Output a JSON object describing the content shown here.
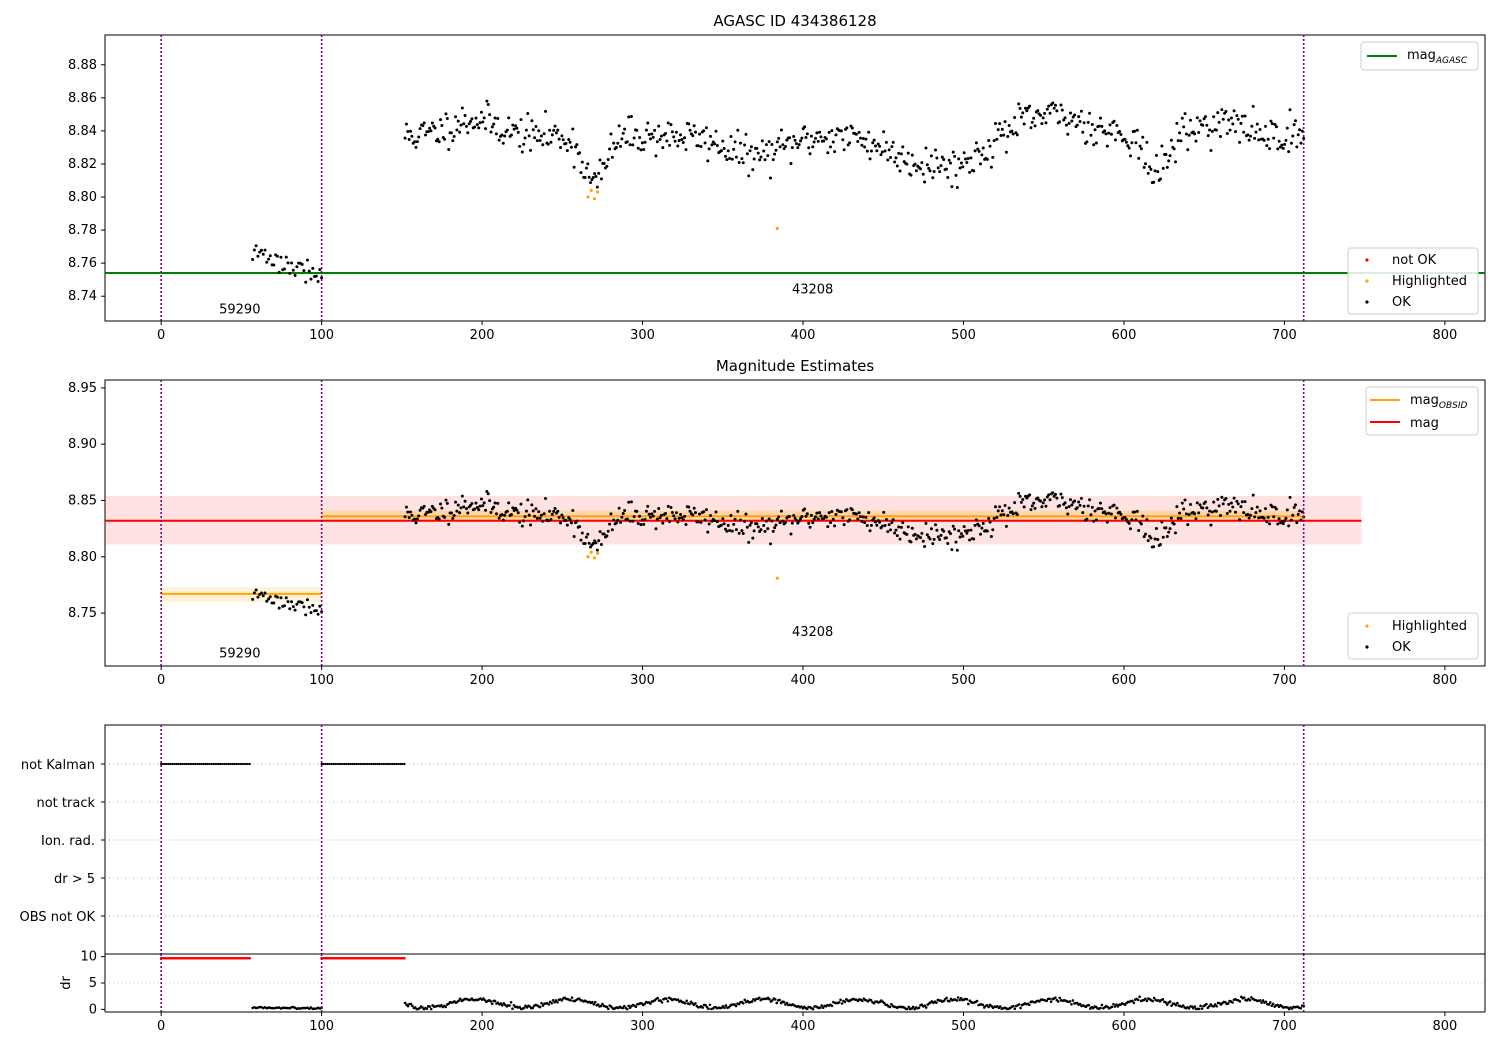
{
  "chart_data": [
    {
      "type": "scatter",
      "title": "AGASC ID 434386128",
      "xlim": [
        -35,
        825
      ],
      "ylim": [
        8.725,
        8.898
      ],
      "x_ticks": [
        0,
        100,
        200,
        300,
        400,
        500,
        600,
        700,
        800
      ],
      "y_ticks": [
        "8.74",
        "8.76",
        "8.78",
        "8.80",
        "8.82",
        "8.84",
        "8.86",
        "8.88"
      ],
      "hlines": [
        {
          "name": "mag_AGASC",
          "y": 8.754,
          "x": [
            -35,
            825
          ],
          "color": "#008000"
        }
      ],
      "vlines": [
        0,
        100,
        712
      ],
      "vline_color": "#800080",
      "annotations": [
        {
          "text": "59290",
          "x": 49,
          "y": 8.732
        },
        {
          "text": "43208",
          "x": 406,
          "y": 8.744
        }
      ],
      "legend_lines": [
        {
          "main": "mag",
          "sub": "AGASC",
          "color": "#008000"
        }
      ],
      "legend_markers": [
        {
          "label": "not OK",
          "color": "#ff0000"
        },
        {
          "label": "Highlighted",
          "color": "#ffa500"
        },
        {
          "label": "OK",
          "color": "#000000"
        }
      ],
      "highlighted": [
        [
          266,
          8.8
        ],
        [
          268,
          8.804
        ],
        [
          270,
          8.799
        ],
        [
          272,
          8.803
        ],
        [
          384,
          8.781
        ]
      ],
      "segments": [
        {
          "x0": 57,
          "x1": 100,
          "n": 40,
          "base": 8.768,
          "slope": -0.016,
          "noise": 0.006,
          "seed": 3
        },
        {
          "x0": 152,
          "x1": 712,
          "n": 660,
          "base": 8.837,
          "noise": 0.009,
          "seed": 11,
          "dips": [
            [
              270,
              0.028,
              10
            ],
            [
              620,
              0.024,
              9
            ],
            [
              370,
              0.012,
              25
            ],
            [
              470,
              0.014,
              25
            ],
            [
              500,
              0.014,
              20
            ]
          ],
          "bumps": [
            [
              555,
              0.012,
              30
            ],
            [
              195,
              0.01,
              20
            ],
            [
              660,
              0.008,
              20
            ]
          ]
        }
      ]
    },
    {
      "type": "scatter",
      "title": "Magnitude Estimates",
      "xlim": [
        -35,
        825
      ],
      "ylim": [
        8.703,
        8.957
      ],
      "x_ticks": [
        0,
        100,
        200,
        300,
        400,
        500,
        600,
        700,
        800
      ],
      "y_ticks": [
        "8.75",
        "8.80",
        "8.85",
        "8.90",
        "8.95"
      ],
      "hlines": [
        {
          "name": "mag",
          "y": 8.832,
          "x": [
            -35,
            748
          ],
          "color": "#ff0000"
        },
        {
          "name": "mag_OBSID",
          "y": 8.767,
          "x": [
            0,
            100
          ],
          "color": "#ffa500"
        },
        {
          "name": "mag_OBSID",
          "y": 8.836,
          "x": [
            100,
            712
          ],
          "color": "#ffa500"
        }
      ],
      "bands": [
        {
          "x": [
            -35,
            748
          ],
          "y": [
            8.811,
            8.854
          ],
          "color": "#ff0000",
          "opacity": 0.11
        },
        {
          "x": [
            0,
            100
          ],
          "y": [
            8.76,
            8.773
          ],
          "color": "#ffa500",
          "opacity": 0.15
        },
        {
          "x": [
            100,
            712
          ],
          "y": [
            8.831,
            8.841
          ],
          "color": "#ffa500",
          "opacity": 0.22
        }
      ],
      "vlines": [
        0,
        100,
        712
      ],
      "vline_color": "#800080",
      "annotations": [
        {
          "text": "59290",
          "x": 49,
          "y": 8.714
        },
        {
          "text": "43208",
          "x": 406,
          "y": 8.733
        }
      ],
      "legend_lines": [
        {
          "main": "mag",
          "sub": "OBSID",
          "color": "#ffa500"
        },
        {
          "main": "mag",
          "sub": "",
          "color": "#ff0000"
        }
      ],
      "legend_markers": [
        {
          "label": "Highlighted",
          "color": "#ffa500"
        },
        {
          "label": "OK",
          "color": "#000000"
        }
      ],
      "highlighted": [
        [
          266,
          8.8
        ],
        [
          268,
          8.804
        ],
        [
          270,
          8.799
        ],
        [
          272,
          8.803
        ],
        [
          384,
          8.781
        ]
      ],
      "segments": [
        {
          "x0": 57,
          "x1": 100,
          "n": 40,
          "base": 8.768,
          "slope": -0.016,
          "noise": 0.006,
          "seed": 3
        },
        {
          "x0": 152,
          "x1": 712,
          "n": 660,
          "base": 8.837,
          "noise": 0.009,
          "seed": 11,
          "dips": [
            [
              270,
              0.028,
              10
            ],
            [
              620,
              0.024,
              9
            ],
            [
              370,
              0.012,
              25
            ],
            [
              470,
              0.014,
              25
            ],
            [
              500,
              0.014,
              20
            ]
          ],
          "bumps": [
            [
              555,
              0.012,
              30
            ],
            [
              195,
              0.01,
              20
            ],
            [
              660,
              0.008,
              20
            ]
          ]
        }
      ]
    },
    {
      "type": "scatter",
      "title": "",
      "xlim": [
        -35,
        825
      ],
      "flag_labels": [
        "not Kalman",
        "not track",
        "Ion. rad.",
        "dr > 5",
        "OBS not OK"
      ],
      "flag_runs": [
        {
          "flag": "not Kalman",
          "ranges": [
            [
              0,
              56
            ],
            [
              100,
              152
            ]
          ]
        }
      ],
      "vlines": [
        0,
        100,
        712
      ],
      "vline_color": "#800080"
    },
    {
      "type": "scatter",
      "title": "",
      "ylabel": "dr",
      "xlim": [
        -35,
        825
      ],
      "ylim": [
        -0.5,
        10.5
      ],
      "x_ticks": [
        0,
        100,
        200,
        300,
        400,
        500,
        600,
        700,
        800
      ],
      "y_ticks": [
        "0",
        "5",
        "10"
      ],
      "capped": {
        "y": 9.7,
        "ranges": [
          [
            0,
            56
          ],
          [
            100,
            152
          ]
        ],
        "color": "#ff0000"
      },
      "segments": [
        {
          "x0": 57,
          "x1": 100,
          "n": 40,
          "base": 0.3,
          "noise": 0.15,
          "seed": 5
        },
        {
          "x0": 152,
          "x1": 712,
          "n": 620,
          "base": 1.1,
          "noise": 0.35,
          "seed": 9,
          "wave": [
            0.8,
            60
          ]
        }
      ],
      "vlines": [
        0,
        100,
        712
      ],
      "vline_color": "#800080"
    }
  ]
}
